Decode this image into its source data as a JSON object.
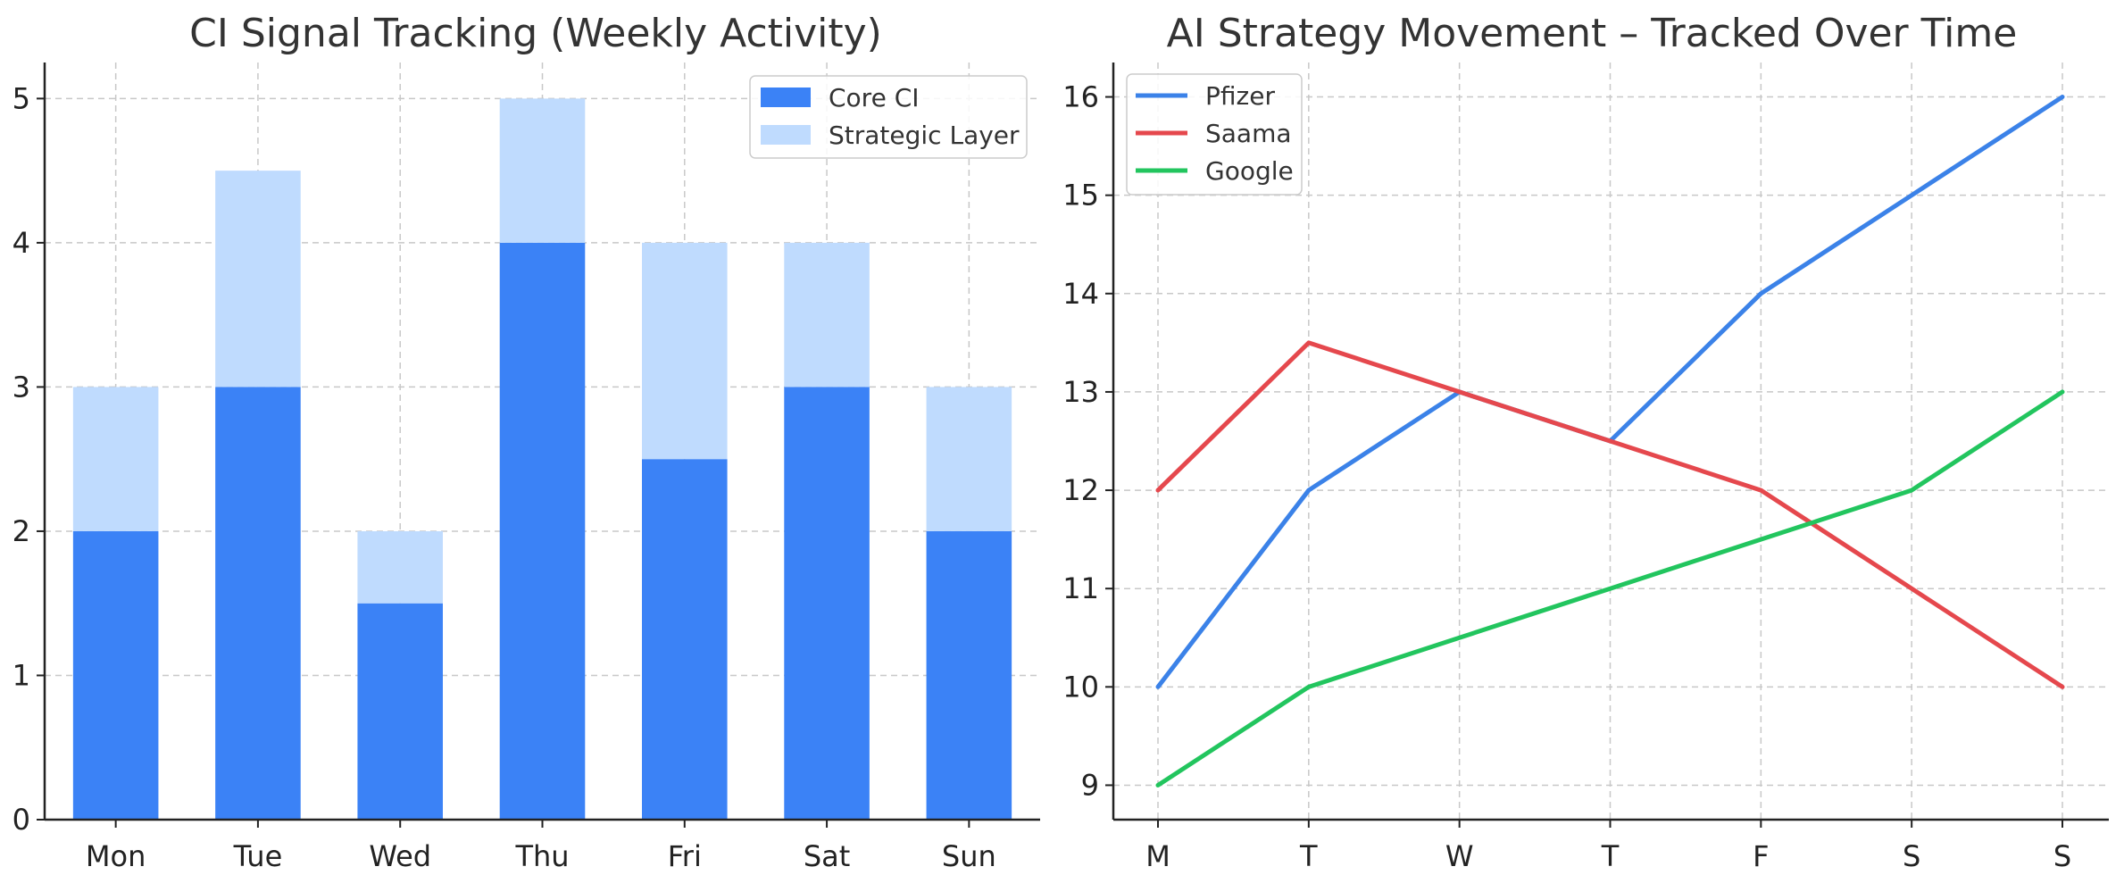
{
  "colors": {
    "core": "#3b82f6",
    "strategic": "#bfdbfe",
    "pfizer": "#3b82e8",
    "saama": "#e5484d",
    "google": "#22c55e"
  },
  "chart_data": [
    {
      "type": "bar",
      "stacked": true,
      "title": "CI Signal Tracking (Weekly Activity)",
      "categories": [
        "Mon",
        "Tue",
        "Wed",
        "Thu",
        "Fri",
        "Sat",
        "Sun"
      ],
      "series": [
        {
          "name": "Core CI",
          "values": [
            2,
            3,
            1.5,
            4,
            2.5,
            3,
            2
          ]
        },
        {
          "name": "Strategic Layer",
          "values": [
            1,
            1.5,
            0.5,
            1,
            1.5,
            1,
            1
          ]
        }
      ],
      "ylim": [
        0,
        5.25
      ],
      "yticks": [
        0,
        1,
        2,
        3,
        4,
        5
      ],
      "xlabel": "",
      "ylabel": "",
      "grid": true,
      "legend": "top-right"
    },
    {
      "type": "line",
      "title": "AI Strategy Movement – Tracked Over Time",
      "categories": [
        "M",
        "T",
        "W",
        "T",
        "F",
        "S",
        "S"
      ],
      "series": [
        {
          "name": "Pfizer",
          "values": [
            10,
            12,
            13,
            12.5,
            14,
            15,
            16
          ]
        },
        {
          "name": "Saama",
          "values": [
            12,
            13.5,
            13,
            12.5,
            12,
            11,
            10
          ]
        },
        {
          "name": "Google",
          "values": [
            9,
            10,
            10.5,
            11,
            11.5,
            12,
            13
          ]
        }
      ],
      "ylim": [
        8.65,
        16.35
      ],
      "yticks": [
        9,
        10,
        11,
        12,
        13,
        14,
        15,
        16
      ],
      "xlabel": "",
      "ylabel": "",
      "grid": true,
      "legend": "top-left"
    }
  ]
}
